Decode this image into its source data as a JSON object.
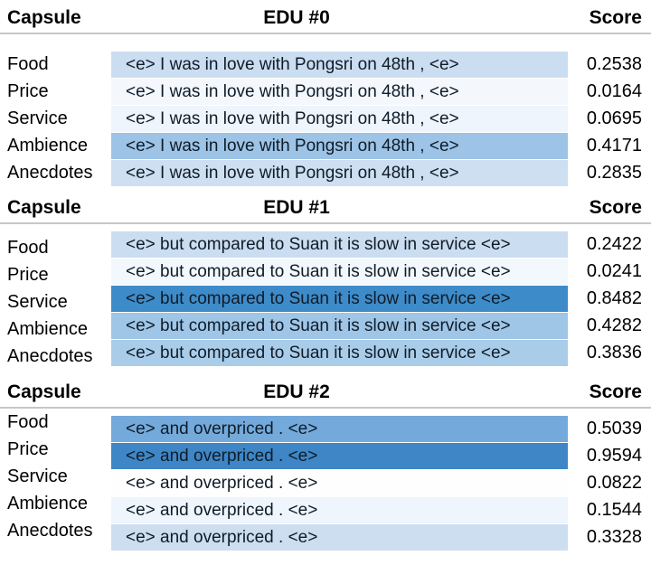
{
  "columns": {
    "capsule": "Capsule",
    "score": "Score"
  },
  "chart_data": {
    "type": "heatmap",
    "title": "",
    "row_labels": [
      "Food",
      "Price",
      "Service",
      "Ambience",
      "Anecdotes"
    ],
    "column_labels": [
      "EDU #0",
      "EDU #1",
      "EDU #2"
    ],
    "edu_texts": [
      "<e> I was in love with Pongsri on 48th , <e>",
      "<e> but compared to Suan it is slow in service <e>",
      "<e> and overpriced . <e>"
    ],
    "values": {
      "EDU #0": [
        0.2538,
        0.0164,
        0.0695,
        0.4171,
        0.2835
      ],
      "EDU #1": [
        0.2422,
        0.0241,
        0.8482,
        0.4282,
        0.3836
      ],
      "EDU #2": [
        0.5039,
        0.9594,
        0.0822,
        0.1544,
        0.3328
      ]
    },
    "value_range": [
      0,
      1
    ],
    "colorscale": {
      "low": "#FFFFFF",
      "high": "#3E86C6"
    },
    "legend": "none",
    "grid": "off"
  },
  "sections": [
    {
      "edu_label": "EDU #0",
      "edu_text": "<e> I was in love with Pongsri on 48th , <e>",
      "rows": [
        {
          "capsule": "Food",
          "score": "0.2538",
          "color": "#CBDDF0"
        },
        {
          "capsule": "Price",
          "score": "0.0164",
          "color": "#F4F8FD"
        },
        {
          "capsule": "Service",
          "score": "0.0695",
          "color": "#EFF5FC"
        },
        {
          "capsule": "Ambience",
          "score": "0.4171",
          "color": "#9DC3E6"
        },
        {
          "capsule": "Anecdotes",
          "score": "0.2835",
          "color": "#CDDFF1"
        }
      ]
    },
    {
      "edu_label": "EDU #1",
      "edu_text": "<e> but compared to Suan it is slow in service <e>",
      "rows": [
        {
          "capsule": "Food",
          "score": "0.2422",
          "color": "#CBDDF0"
        },
        {
          "capsule": "Price",
          "score": "0.0241",
          "color": "#F3F8FD"
        },
        {
          "capsule": "Service",
          "score": "0.8482",
          "color": "#3E8BC9"
        },
        {
          "capsule": "Ambience",
          "score": "0.4282",
          "color": "#9FC5E7"
        },
        {
          "capsule": "Anecdotes",
          "score": "0.3836",
          "color": "#A9CCE9"
        }
      ]
    },
    {
      "edu_label": "EDU #2",
      "edu_text": "<e> and overpriced . <e>",
      "rows": [
        {
          "capsule": "Food",
          "score": "0.5039",
          "color": "#74A9DB"
        },
        {
          "capsule": "Price",
          "score": "0.9594",
          "color": "#3E86C6"
        },
        {
          "capsule": "Service",
          "score": "0.0822",
          "color": "#FEFEFF"
        },
        {
          "capsule": "Ambience",
          "score": "0.1544",
          "color": "#EFF5FC"
        },
        {
          "capsule": "Anecdotes",
          "score": "0.3328",
          "color": "#CDDEF1"
        }
      ]
    }
  ]
}
